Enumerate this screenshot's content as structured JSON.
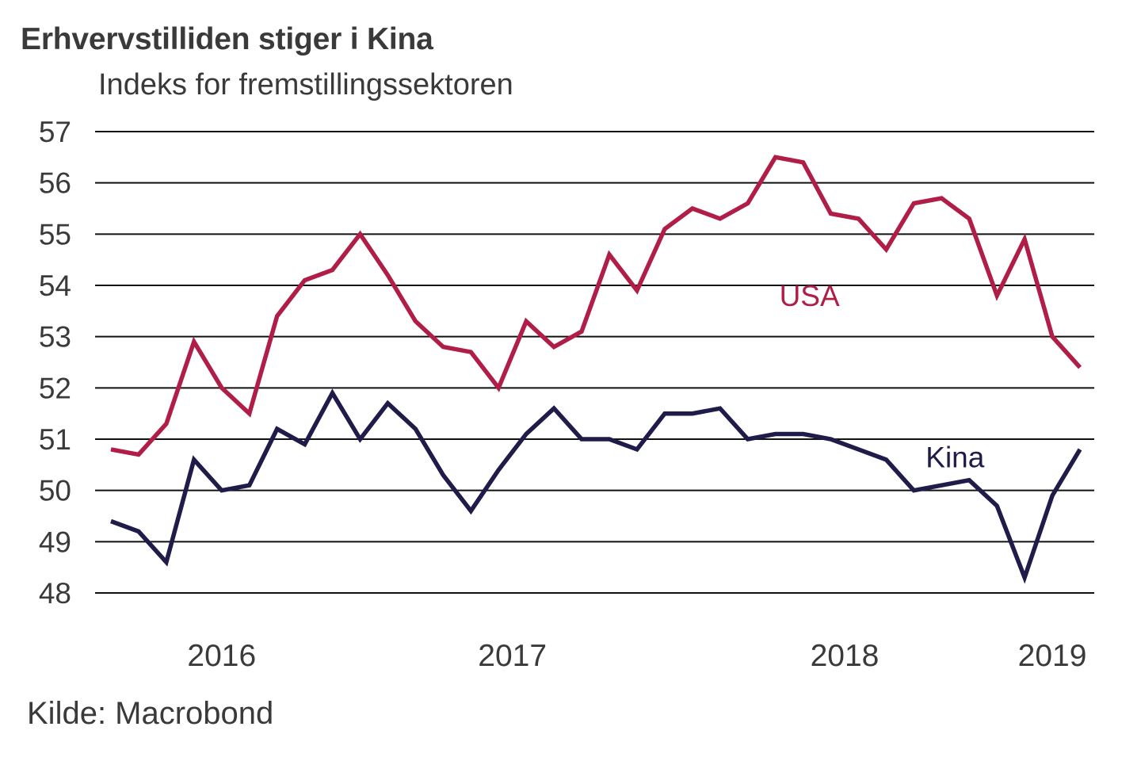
{
  "chart_data": {
    "type": "line",
    "title": "Erhvervstilliden stiger i Kina",
    "subtitle": "Indeks for fremstillingssektoren",
    "xlabel": "",
    "ylabel": "",
    "ylim": [
      48,
      57
    ],
    "yticks": [
      57,
      56,
      55,
      54,
      53,
      52,
      51,
      50,
      49,
      48
    ],
    "grid": true,
    "x_period": "monthly",
    "x_count": 36,
    "xtick_labels": [
      {
        "label": "2016",
        "index": 4
      },
      {
        "label": "2017",
        "index": 14.5
      },
      {
        "label": "2018",
        "index": 26.5
      },
      {
        "label": "2019",
        "index": 34
      }
    ],
    "series": [
      {
        "name": "USA",
        "color": "#b01e48",
        "label_pos_index": 25,
        "label_pos_value": 53.8,
        "values": [
          50.8,
          50.7,
          51.3,
          52.9,
          52.0,
          51.5,
          53.4,
          54.1,
          54.3,
          55.0,
          54.2,
          53.3,
          52.8,
          52.7,
          52.0,
          53.3,
          52.8,
          53.1,
          54.6,
          53.9,
          55.1,
          55.5,
          55.3,
          55.6,
          56.5,
          56.4,
          55.4,
          55.3,
          54.7,
          55.6,
          55.7,
          55.3,
          53.8,
          54.9,
          53.0,
          52.4
        ]
      },
      {
        "name": "Kina",
        "color": "#1f1c4a",
        "label_pos_index": 30,
        "label_pos_value": 50.65,
        "values": [
          49.4,
          49.2,
          48.6,
          50.6,
          50.0,
          50.1,
          51.2,
          50.9,
          51.9,
          51.0,
          51.7,
          51.2,
          50.3,
          49.6,
          50.4,
          51.1,
          51.6,
          51.0,
          51.0,
          50.8,
          51.5,
          51.5,
          51.6,
          51.0,
          51.1,
          51.1,
          51.0,
          50.8,
          50.6,
          50.0,
          50.1,
          50.2,
          49.7,
          48.3,
          49.9,
          50.8
        ]
      }
    ],
    "source": "Kilde: Macrobond"
  }
}
